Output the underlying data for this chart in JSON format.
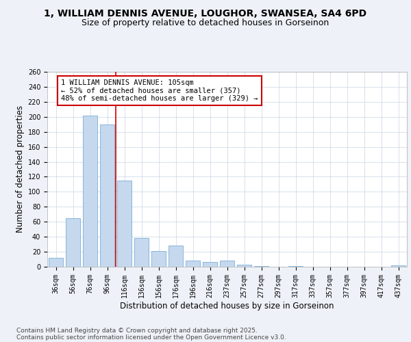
{
  "title_line1": "1, WILLIAM DENNIS AVENUE, LOUGHOR, SWANSEA, SA4 6PD",
  "title_line2": "Size of property relative to detached houses in Gorseinon",
  "xlabel": "Distribution of detached houses by size in Gorseinon",
  "ylabel": "Number of detached properties",
  "categories": [
    "36sqm",
    "56sqm",
    "76sqm",
    "96sqm",
    "116sqm",
    "136sqm",
    "156sqm",
    "176sqm",
    "196sqm",
    "216sqm",
    "237sqm",
    "257sqm",
    "277sqm",
    "297sqm",
    "317sqm",
    "337sqm",
    "357sqm",
    "377sqm",
    "397sqm",
    "417sqm",
    "437sqm"
  ],
  "values": [
    12,
    65,
    202,
    190,
    115,
    38,
    21,
    28,
    8,
    6,
    8,
    3,
    1,
    0,
    1,
    0,
    0,
    0,
    0,
    0,
    2
  ],
  "bar_color": "#c5d8ee",
  "bar_edge_color": "#7aadd4",
  "annotation_box_text": "1 WILLIAM DENNIS AVENUE: 105sqm\n← 52% of detached houses are smaller (357)\n48% of semi-detached houses are larger (329) →",
  "annotation_box_color": "#ffffff",
  "annotation_box_edge_color": "#cc0000",
  "vline_color": "#cc0000",
  "vline_x_index": 3.5,
  "ylim": [
    0,
    260
  ],
  "yticks": [
    0,
    20,
    40,
    60,
    80,
    100,
    120,
    140,
    160,
    180,
    200,
    220,
    240,
    260
  ],
  "footer_line1": "Contains HM Land Registry data © Crown copyright and database right 2025.",
  "footer_line2": "Contains public sector information licensed under the Open Government Licence v3.0.",
  "bg_color": "#eef2f8",
  "plot_bg_color": "#ffffff",
  "title_fontsize": 10,
  "subtitle_fontsize": 9,
  "axis_label_fontsize": 8.5,
  "tick_fontsize": 7,
  "annotation_fontsize": 7.5,
  "footer_fontsize": 6.5
}
